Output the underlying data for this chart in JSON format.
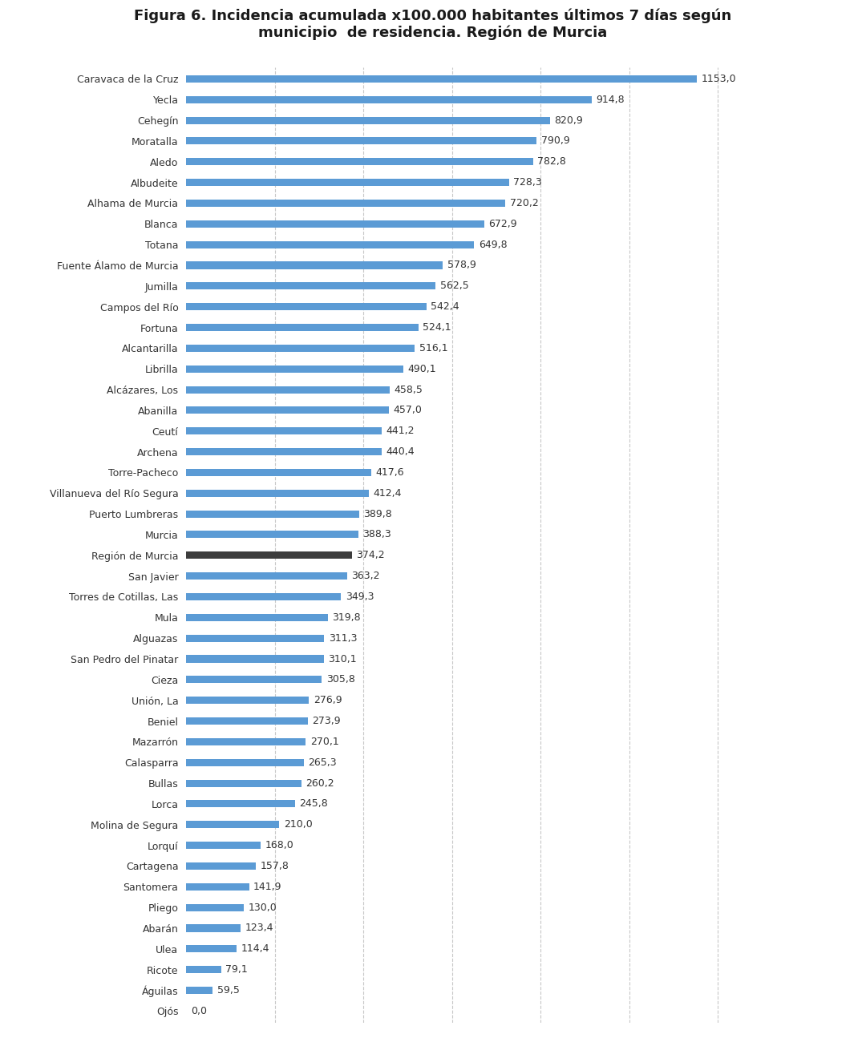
{
  "title_line1": "Figura 6. Incidencia acumulada x100.000 habitantes últimos 7 días según",
  "title_line2": "municipio  de residencia. Región de Murcia",
  "categories": [
    "Caravaca de la Cruz",
    "Yecla",
    "Cehegín",
    "Moratalla",
    "Aledo",
    "Albudeite",
    "Alhama de Murcia",
    "Blanca",
    "Totana",
    "Fuente Álamo de Murcia",
    "Jumilla",
    "Campos del Río",
    "Fortuna",
    "Alcantarilla",
    "Librilla",
    "Alcázares, Los",
    "Abanilla",
    "Ceutí",
    "Archena",
    "Torre-Pacheco",
    "Villanueva del Río Segura",
    "Puerto Lumbreras",
    "Murcia",
    "Región de Murcia",
    "San Javier",
    "Torres de Cotillas, Las",
    "Mula",
    "Alguazas",
    "San Pedro del Pinatar",
    "Cieza",
    "Unión, La",
    "Beniel",
    "Mazarrón",
    "Calasparra",
    "Bullas",
    "Lorca",
    "Molina de Segura",
    "Lorquí",
    "Cartagena",
    "Santomera",
    "Pliego",
    "Abarán",
    "Ulea",
    "Ricote",
    "Águilas",
    "Ojós"
  ],
  "values": [
    1153.0,
    914.8,
    820.9,
    790.9,
    782.8,
    728.3,
    720.2,
    672.9,
    649.8,
    578.9,
    562.5,
    542.4,
    524.1,
    516.1,
    490.1,
    458.5,
    457.0,
    441.2,
    440.4,
    417.6,
    412.4,
    389.8,
    388.3,
    374.2,
    363.2,
    349.3,
    319.8,
    311.3,
    310.1,
    305.8,
    276.9,
    273.9,
    270.1,
    265.3,
    260.2,
    245.8,
    210.0,
    168.0,
    157.8,
    141.9,
    130.0,
    123.4,
    114.4,
    79.1,
    59.5,
    0.0
  ],
  "bar_color_normal": "#5B9BD5",
  "bar_color_region": "#3D3D3D",
  "region_label": "Región de Murcia",
  "label_fontsize": 9,
  "value_fontsize": 9,
  "title_fontsize": 13,
  "background_color": "#FFFFFF",
  "grid_color": "#C8C8C8",
  "xlim": [
    0,
    1280
  ],
  "figsize": [
    10.8,
    12.95
  ],
  "bar_height": 0.35
}
